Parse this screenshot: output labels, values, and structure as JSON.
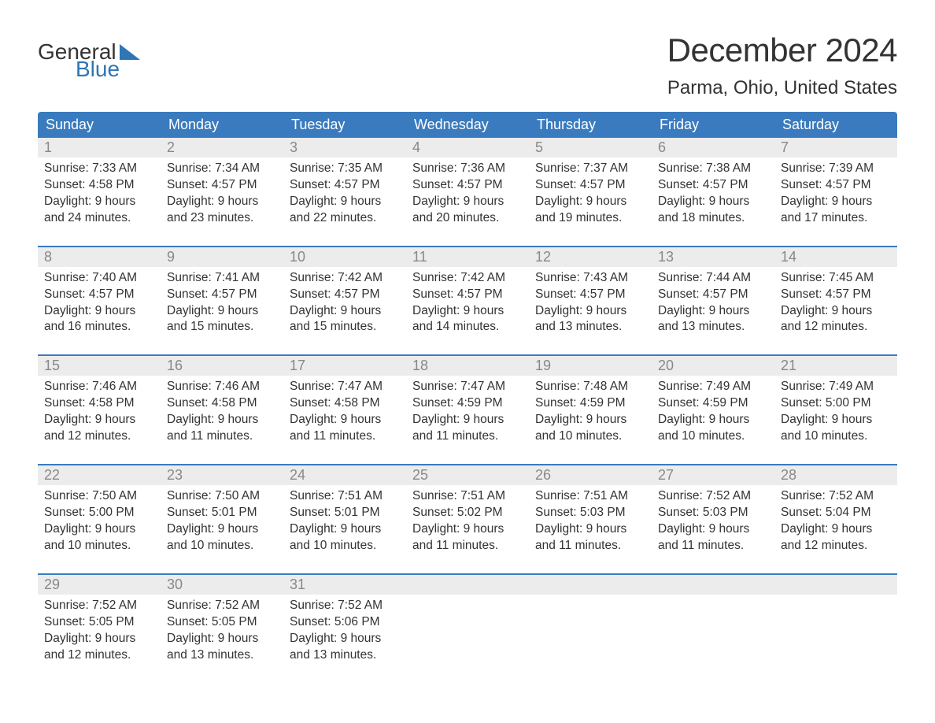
{
  "logo": {
    "text1": "General",
    "text2": "Blue",
    "accent_color": "#2e76b6"
  },
  "title": "December 2024",
  "location": "Parma, Ohio, United States",
  "colors": {
    "header_bg": "#3a7bbf",
    "header_text": "#ffffff",
    "daynum_bg": "#ececec",
    "daynum_text": "#888888",
    "week_border": "#3a7bbf",
    "body_text": "#333333",
    "page_bg": "#ffffff"
  },
  "typography": {
    "title_fontsize": 42,
    "location_fontsize": 24,
    "weekday_fontsize": 18,
    "daynum_fontsize": 18,
    "body_fontsize": 15.5
  },
  "layout": {
    "columns": 7,
    "rows": 5,
    "cell_gap": 0
  },
  "weekdays": [
    "Sunday",
    "Monday",
    "Tuesday",
    "Wednesday",
    "Thursday",
    "Friday",
    "Saturday"
  ],
  "weeks": [
    [
      {
        "n": "1",
        "sunrise": "Sunrise: 7:33 AM",
        "sunset": "Sunset: 4:58 PM",
        "d1": "Daylight: 9 hours",
        "d2": "and 24 minutes."
      },
      {
        "n": "2",
        "sunrise": "Sunrise: 7:34 AM",
        "sunset": "Sunset: 4:57 PM",
        "d1": "Daylight: 9 hours",
        "d2": "and 23 minutes."
      },
      {
        "n": "3",
        "sunrise": "Sunrise: 7:35 AM",
        "sunset": "Sunset: 4:57 PM",
        "d1": "Daylight: 9 hours",
        "d2": "and 22 minutes."
      },
      {
        "n": "4",
        "sunrise": "Sunrise: 7:36 AM",
        "sunset": "Sunset: 4:57 PM",
        "d1": "Daylight: 9 hours",
        "d2": "and 20 minutes."
      },
      {
        "n": "5",
        "sunrise": "Sunrise: 7:37 AM",
        "sunset": "Sunset: 4:57 PM",
        "d1": "Daylight: 9 hours",
        "d2": "and 19 minutes."
      },
      {
        "n": "6",
        "sunrise": "Sunrise: 7:38 AM",
        "sunset": "Sunset: 4:57 PM",
        "d1": "Daylight: 9 hours",
        "d2": "and 18 minutes."
      },
      {
        "n": "7",
        "sunrise": "Sunrise: 7:39 AM",
        "sunset": "Sunset: 4:57 PM",
        "d1": "Daylight: 9 hours",
        "d2": "and 17 minutes."
      }
    ],
    [
      {
        "n": "8",
        "sunrise": "Sunrise: 7:40 AM",
        "sunset": "Sunset: 4:57 PM",
        "d1": "Daylight: 9 hours",
        "d2": "and 16 minutes."
      },
      {
        "n": "9",
        "sunrise": "Sunrise: 7:41 AM",
        "sunset": "Sunset: 4:57 PM",
        "d1": "Daylight: 9 hours",
        "d2": "and 15 minutes."
      },
      {
        "n": "10",
        "sunrise": "Sunrise: 7:42 AM",
        "sunset": "Sunset: 4:57 PM",
        "d1": "Daylight: 9 hours",
        "d2": "and 15 minutes."
      },
      {
        "n": "11",
        "sunrise": "Sunrise: 7:42 AM",
        "sunset": "Sunset: 4:57 PM",
        "d1": "Daylight: 9 hours",
        "d2": "and 14 minutes."
      },
      {
        "n": "12",
        "sunrise": "Sunrise: 7:43 AM",
        "sunset": "Sunset: 4:57 PM",
        "d1": "Daylight: 9 hours",
        "d2": "and 13 minutes."
      },
      {
        "n": "13",
        "sunrise": "Sunrise: 7:44 AM",
        "sunset": "Sunset: 4:57 PM",
        "d1": "Daylight: 9 hours",
        "d2": "and 13 minutes."
      },
      {
        "n": "14",
        "sunrise": "Sunrise: 7:45 AM",
        "sunset": "Sunset: 4:57 PM",
        "d1": "Daylight: 9 hours",
        "d2": "and 12 minutes."
      }
    ],
    [
      {
        "n": "15",
        "sunrise": "Sunrise: 7:46 AM",
        "sunset": "Sunset: 4:58 PM",
        "d1": "Daylight: 9 hours",
        "d2": "and 12 minutes."
      },
      {
        "n": "16",
        "sunrise": "Sunrise: 7:46 AM",
        "sunset": "Sunset: 4:58 PM",
        "d1": "Daylight: 9 hours",
        "d2": "and 11 minutes."
      },
      {
        "n": "17",
        "sunrise": "Sunrise: 7:47 AM",
        "sunset": "Sunset: 4:58 PM",
        "d1": "Daylight: 9 hours",
        "d2": "and 11 minutes."
      },
      {
        "n": "18",
        "sunrise": "Sunrise: 7:47 AM",
        "sunset": "Sunset: 4:59 PM",
        "d1": "Daylight: 9 hours",
        "d2": "and 11 minutes."
      },
      {
        "n": "19",
        "sunrise": "Sunrise: 7:48 AM",
        "sunset": "Sunset: 4:59 PM",
        "d1": "Daylight: 9 hours",
        "d2": "and 10 minutes."
      },
      {
        "n": "20",
        "sunrise": "Sunrise: 7:49 AM",
        "sunset": "Sunset: 4:59 PM",
        "d1": "Daylight: 9 hours",
        "d2": "and 10 minutes."
      },
      {
        "n": "21",
        "sunrise": "Sunrise: 7:49 AM",
        "sunset": "Sunset: 5:00 PM",
        "d1": "Daylight: 9 hours",
        "d2": "and 10 minutes."
      }
    ],
    [
      {
        "n": "22",
        "sunrise": "Sunrise: 7:50 AM",
        "sunset": "Sunset: 5:00 PM",
        "d1": "Daylight: 9 hours",
        "d2": "and 10 minutes."
      },
      {
        "n": "23",
        "sunrise": "Sunrise: 7:50 AM",
        "sunset": "Sunset: 5:01 PM",
        "d1": "Daylight: 9 hours",
        "d2": "and 10 minutes."
      },
      {
        "n": "24",
        "sunrise": "Sunrise: 7:51 AM",
        "sunset": "Sunset: 5:01 PM",
        "d1": "Daylight: 9 hours",
        "d2": "and 10 minutes."
      },
      {
        "n": "25",
        "sunrise": "Sunrise: 7:51 AM",
        "sunset": "Sunset: 5:02 PM",
        "d1": "Daylight: 9 hours",
        "d2": "and 11 minutes."
      },
      {
        "n": "26",
        "sunrise": "Sunrise: 7:51 AM",
        "sunset": "Sunset: 5:03 PM",
        "d1": "Daylight: 9 hours",
        "d2": "and 11 minutes."
      },
      {
        "n": "27",
        "sunrise": "Sunrise: 7:52 AM",
        "sunset": "Sunset: 5:03 PM",
        "d1": "Daylight: 9 hours",
        "d2": "and 11 minutes."
      },
      {
        "n": "28",
        "sunrise": "Sunrise: 7:52 AM",
        "sunset": "Sunset: 5:04 PM",
        "d1": "Daylight: 9 hours",
        "d2": "and 12 minutes."
      }
    ],
    [
      {
        "n": "29",
        "sunrise": "Sunrise: 7:52 AM",
        "sunset": "Sunset: 5:05 PM",
        "d1": "Daylight: 9 hours",
        "d2": "and 12 minutes."
      },
      {
        "n": "30",
        "sunrise": "Sunrise: 7:52 AM",
        "sunset": "Sunset: 5:05 PM",
        "d1": "Daylight: 9 hours",
        "d2": "and 13 minutes."
      },
      {
        "n": "31",
        "sunrise": "Sunrise: 7:52 AM",
        "sunset": "Sunset: 5:06 PM",
        "d1": "Daylight: 9 hours",
        "d2": "and 13 minutes."
      },
      null,
      null,
      null,
      null
    ]
  ]
}
